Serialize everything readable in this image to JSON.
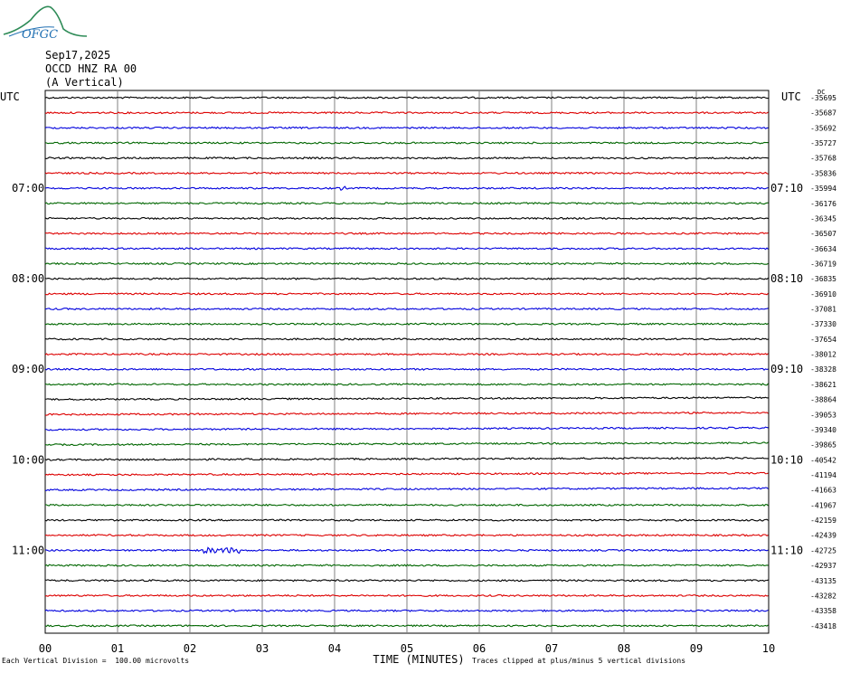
{
  "header": {
    "date": "Sep17,2025",
    "station": "OCCD HNZ RA 00",
    "component": "(A Vertical)",
    "logo_text": "OFGC"
  },
  "footer": {
    "scale_note": "Each Vertical Division =  100.00 microvolts",
    "clip_note": "Traces clipped at plus/minus 5 vertical divisions"
  },
  "chart_data": {
    "type": "line",
    "title": "",
    "xlabel": "TIME (MINUTES)",
    "xlim": [
      0,
      10
    ],
    "x_ticks": [
      "00",
      "01",
      "02",
      "03",
      "04",
      "05",
      "06",
      "07",
      "08",
      "09",
      "10"
    ],
    "left_axis_label": "UTC",
    "right_axis_label": "UTC",
    "right_top_label": "DC",
    "left_hour_labels": [
      {
        "row": 6,
        "label": "07:00"
      },
      {
        "row": 12,
        "label": "08:00"
      },
      {
        "row": 18,
        "label": "09:00"
      },
      {
        "row": 24,
        "label": "10:00"
      },
      {
        "row": 30,
        "label": "11:00"
      }
    ],
    "right_hour_labels": [
      {
        "row": 6,
        "label": "07:10"
      },
      {
        "row": 12,
        "label": "08:10"
      },
      {
        "row": 18,
        "label": "09:10"
      },
      {
        "row": 24,
        "label": "10:10"
      },
      {
        "row": 30,
        "label": "11:10"
      }
    ],
    "trace_colors": [
      "#000000",
      "#dd0000",
      "#0000dd",
      "#006600"
    ],
    "dc_offsets": [
      "-35695",
      "-35687",
      "-35692",
      "-35727",
      "-35768",
      "-35836",
      "-35994",
      "-36176",
      "-36345",
      "-36507",
      "-36634",
      "-36719",
      "-36835",
      "-36910",
      "-37081",
      "-37330",
      "-37654",
      "-38012",
      "-38328",
      "-38621",
      "-38864",
      "-39053",
      "-39340",
      "-39865",
      "-40542",
      "-41194",
      "-41663",
      "-41967",
      "-42159",
      "-42439",
      "-42725",
      "-42937",
      "-43135",
      "-43282",
      "-43358",
      "-43418"
    ],
    "grid": true
  }
}
